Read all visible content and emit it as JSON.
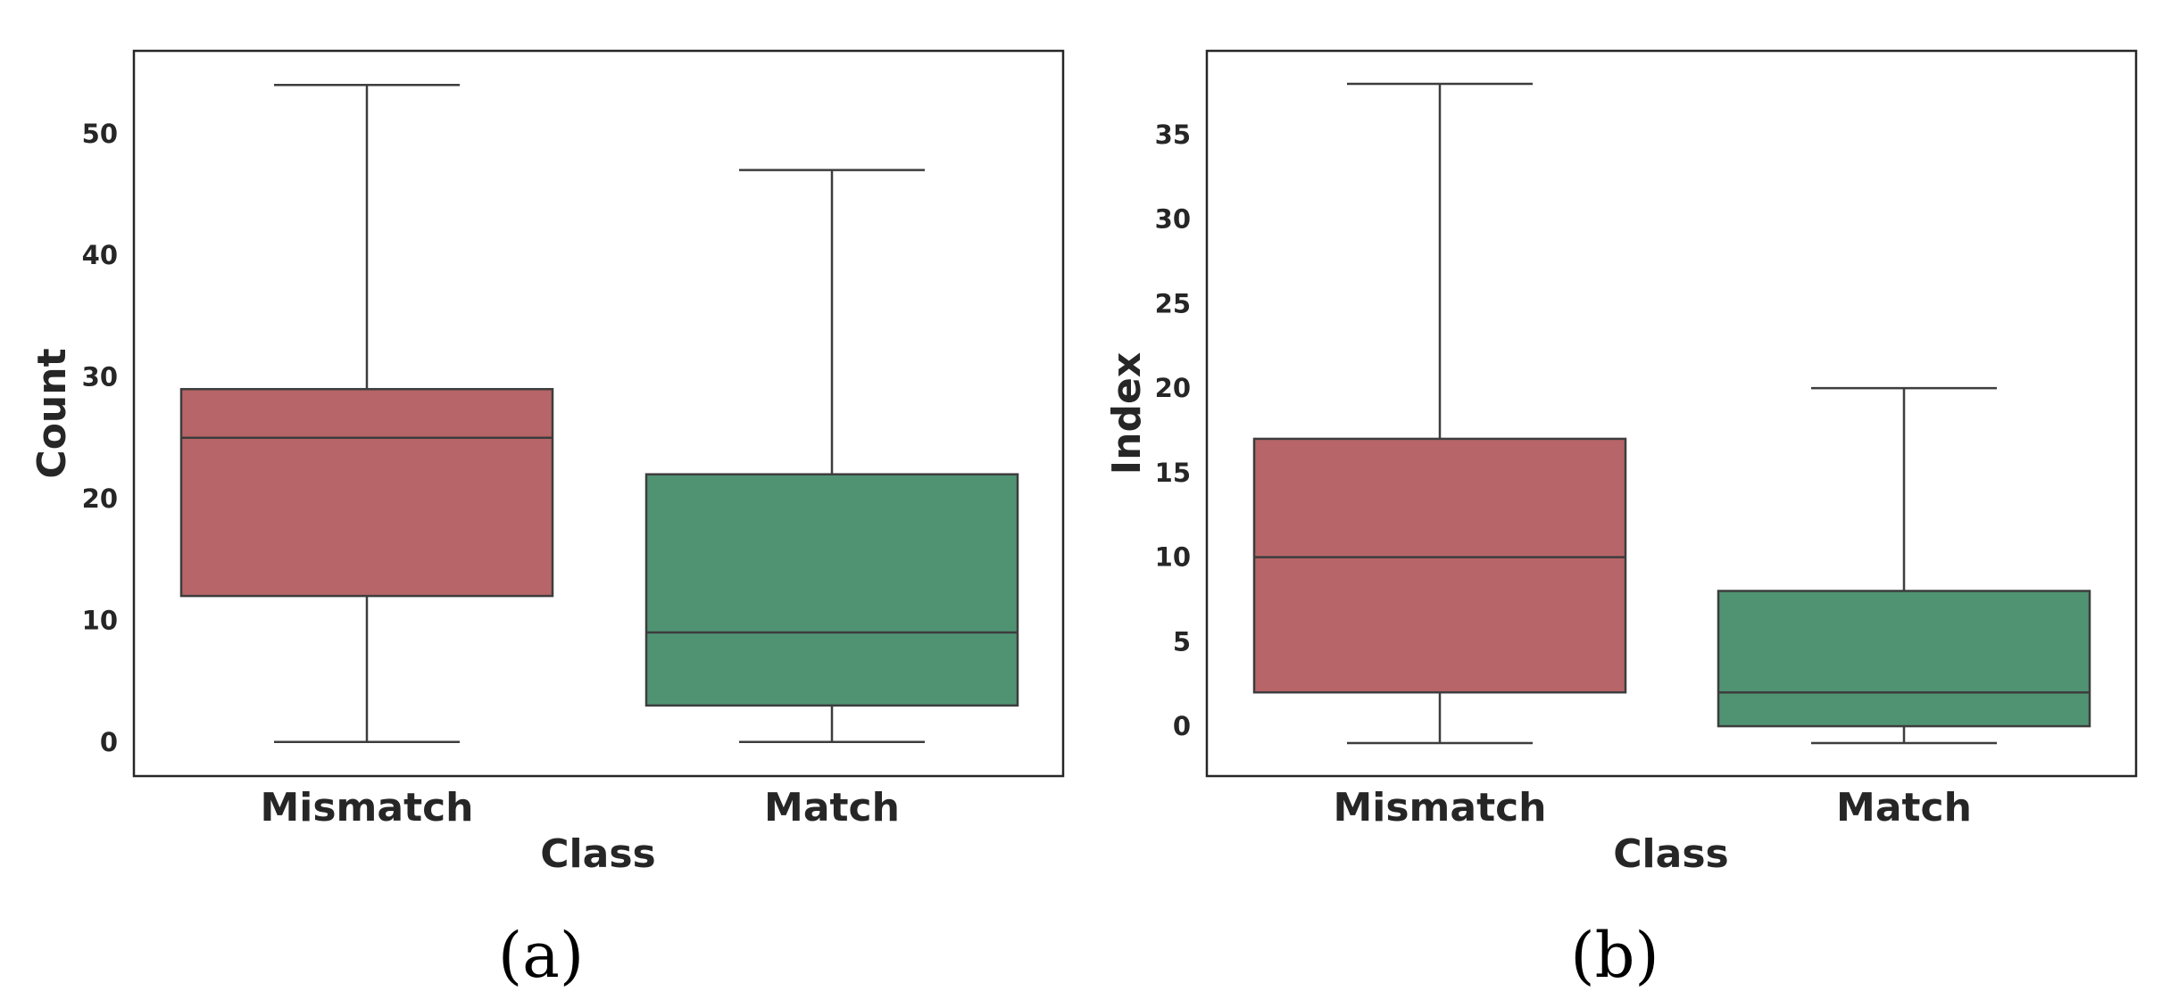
{
  "chart_data": [
    {
      "type": "box",
      "caption": "(a)",
      "xlabel": "Class",
      "ylabel": "Count",
      "categories": [
        "Mismatch",
        "Match"
      ],
      "ylim": [
        -2.8,
        56.8
      ],
      "yticks": [
        0,
        10,
        20,
        30,
        40,
        50
      ],
      "colors": [
        "#b76568",
        "#4f9373"
      ],
      "boxes": [
        {
          "category": "Mismatch",
          "whisker_low": 0,
          "q1": 12,
          "median": 25,
          "q3": 29,
          "whisker_high": 54
        },
        {
          "category": "Match",
          "whisker_low": 0,
          "q1": 3,
          "median": 9,
          "q3": 22,
          "whisker_high": 47
        }
      ],
      "grid": false
    },
    {
      "type": "box",
      "caption": "(b)",
      "xlabel": "Class",
      "ylabel": "Index",
      "categories": [
        "Mismatch",
        "Match"
      ],
      "ylim": [
        -2.95,
        39.95
      ],
      "yticks": [
        0,
        5,
        10,
        15,
        20,
        25,
        30,
        35
      ],
      "colors": [
        "#b76568",
        "#4f9373"
      ],
      "boxes": [
        {
          "category": "Mismatch",
          "whisker_low": -1,
          "q1": 2,
          "median": 10,
          "q3": 17,
          "whisker_high": 38
        },
        {
          "category": "Match",
          "whisker_low": -1,
          "q1": 0,
          "median": 2,
          "q3": 8,
          "whisker_high": 20
        }
      ],
      "grid": false
    }
  ]
}
